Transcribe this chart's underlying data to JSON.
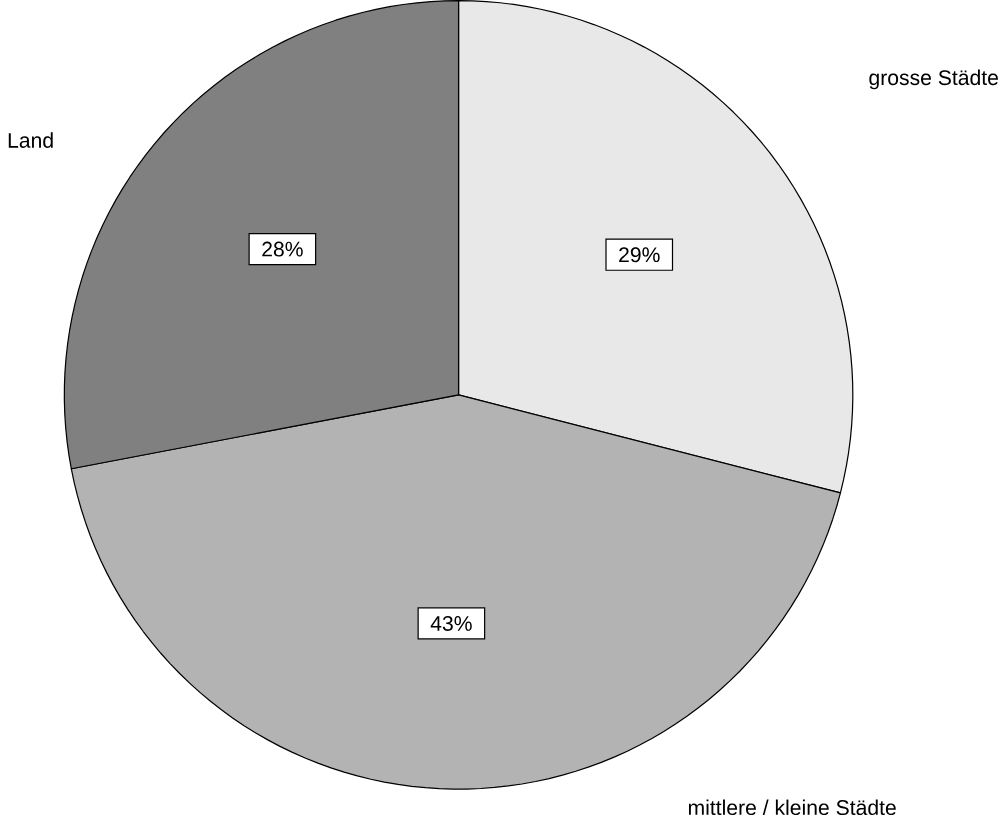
{
  "chart_data": {
    "type": "pie",
    "categories": [
      "grosse Städte",
      "mittlere / kleine Städte",
      "Land"
    ],
    "values": [
      29,
      43,
      28
    ],
    "colors": [
      "#e8e8e8",
      "#b3b3b3",
      "#808080"
    ],
    "value_labels": [
      "29%",
      "43%",
      "28%"
    ]
  }
}
